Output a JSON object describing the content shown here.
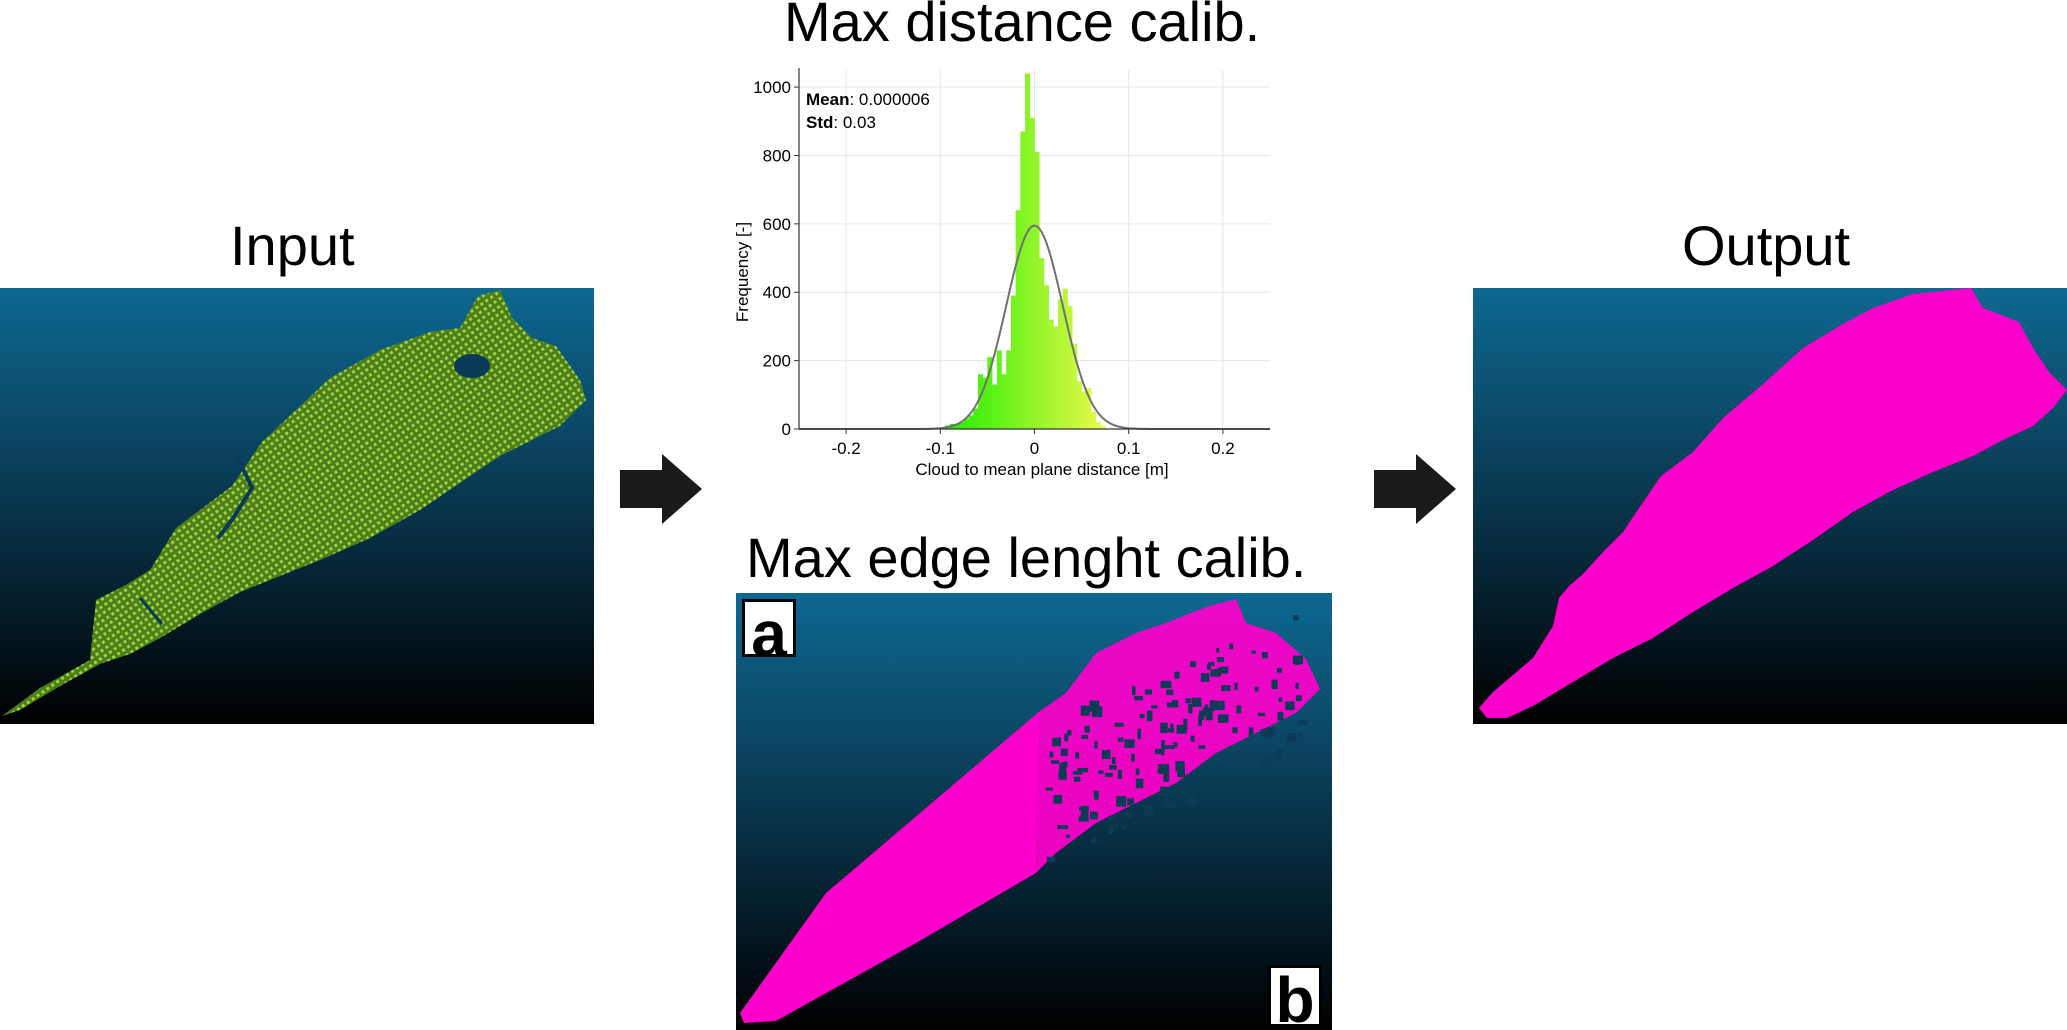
{
  "titles": {
    "input": "Input",
    "max_distance": "Max distance calib.",
    "max_edge": "Max edge lenght calib.",
    "output": "Output"
  },
  "labels": {
    "a": "a",
    "b": "b"
  },
  "colors": {
    "point_cloud": "#8ccf2a",
    "mesh": "#ff00cc",
    "arrow": "#1a1a1a",
    "gauss_curve": "#707070",
    "bar_low": "#22ee00",
    "bar_high": "#d8f83a"
  },
  "icons": [
    "right-arrow-icon",
    "right-arrow-icon"
  ],
  "chart_data": {
    "type": "bar",
    "xlabel": "Cloud to mean plane distance [m]",
    "ylabel": "Frequency [-]",
    "xlim": [
      -0.25,
      0.25
    ],
    "ylim": [
      0,
      1050
    ],
    "xticks": [
      -0.2,
      -0.1,
      0,
      0.1,
      0.2
    ],
    "yticks": [
      0,
      200,
      400,
      600,
      800,
      1000
    ],
    "grid": true,
    "stats": {
      "mean_label": "Mean",
      "mean_value": ": 0.000006",
      "std_label": "Std",
      "std_value": ": 0.03"
    },
    "bin_width": 0.005,
    "bin_centers": [
      -0.0925,
      -0.0875,
      -0.0825,
      -0.0775,
      -0.0725,
      -0.0675,
      -0.0625,
      -0.0575,
      -0.0525,
      -0.0475,
      -0.0425,
      -0.0375,
      -0.0325,
      -0.0275,
      -0.0225,
      -0.0175,
      -0.0125,
      -0.0075,
      -0.0025,
      0.0025,
      0.0075,
      0.0125,
      0.0175,
      0.0225,
      0.0275,
      0.0325,
      0.0375,
      0.0425,
      0.0475,
      0.0525,
      0.0575,
      0.0625,
      0.0675,
      0.0725
    ],
    "values": [
      10,
      15,
      15,
      20,
      30,
      40,
      60,
      160,
      150,
      210,
      130,
      230,
      160,
      230,
      390,
      640,
      870,
      1040,
      910,
      810,
      500,
      420,
      320,
      300,
      380,
      410,
      360,
      250,
      140,
      110,
      120,
      50,
      20,
      10
    ],
    "curve": {
      "name": "",
      "mean": 6e-06,
      "std": 0.03,
      "peak": 595
    }
  }
}
